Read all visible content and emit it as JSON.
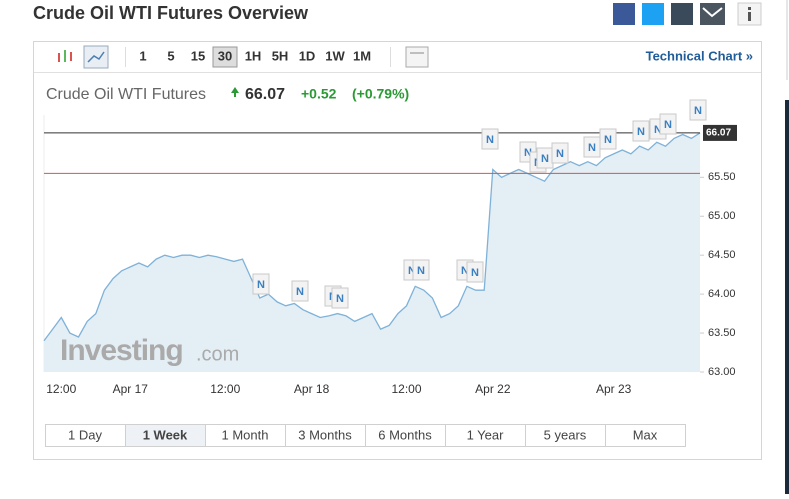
{
  "header": {
    "title": "Crude Oil WTI Futures Overview"
  },
  "toolbar": {
    "intervals": [
      "1",
      "5",
      "15",
      "30",
      "1H",
      "5H",
      "1D",
      "1W",
      "1M"
    ],
    "technical_chart": "Technical Chart »"
  },
  "quote": {
    "name": "Crude Oil WTI Futures",
    "last": 66.07,
    "change": "+0.52",
    "change_pct": "(+0.79%)"
  },
  "watermark": {
    "name": "Investing",
    "suffix": ".com"
  },
  "news_marker": "N",
  "chart_data": {
    "type": "line",
    "categories": [
      null,
      null,
      "12:00",
      null,
      null,
      null,
      null,
      null,
      null,
      null,
      "Apr 17",
      null,
      null,
      null,
      null,
      null,
      null,
      null,
      null,
      null,
      null,
      "12:00",
      null,
      null,
      null,
      null,
      null,
      null,
      null,
      null,
      null,
      "Apr 18",
      null,
      null,
      null,
      null,
      null,
      null,
      null,
      null,
      null,
      null,
      "12:00",
      null,
      null,
      null,
      null,
      null,
      null,
      null,
      null,
      null,
      "Apr 22",
      null,
      null,
      null,
      null,
      null,
      null,
      null,
      null,
      null,
      null,
      null,
      null,
      null,
      "Apr 23",
      null,
      null,
      null,
      null,
      null,
      null,
      null,
      null,
      null,
      null
    ],
    "series": [
      {
        "name": "Crude Oil WTI Futures",
        "color": "#7fb2d8",
        "values": [
          63.4,
          63.55,
          63.7,
          63.5,
          63.45,
          63.65,
          63.75,
          64.05,
          64.2,
          64.3,
          64.35,
          64.4,
          64.35,
          64.45,
          64.5,
          64.47,
          64.5,
          64.5,
          64.47,
          64.5,
          64.48,
          64.45,
          64.42,
          64.45,
          64.2,
          63.95,
          64.0,
          63.9,
          63.85,
          63.88,
          63.8,
          63.75,
          63.7,
          63.72,
          63.75,
          63.72,
          63.65,
          63.7,
          63.75,
          63.55,
          63.6,
          63.75,
          63.85,
          64.1,
          64.05,
          63.95,
          63.7,
          63.75,
          63.85,
          64.1,
          64.05,
          64.05,
          65.6,
          65.5,
          65.55,
          65.6,
          65.55,
          65.5,
          65.45,
          65.6,
          65.65,
          65.7,
          65.65,
          65.7,
          65.65,
          65.75,
          65.8,
          65.85,
          65.8,
          65.9,
          65.85,
          65.95,
          65.9,
          66.0,
          66.05,
          66.0,
          66.07
        ]
      }
    ],
    "last_value": 66.07,
    "last_color": "#333333",
    "prev_close": 65.55,
    "prev_close_color": "#d9534f",
    "area_color": "#e4eef5",
    "ylim": [
      63.0,
      66.3
    ],
    "yticks": [
      {
        "value": 63,
        "label": "63.00"
      },
      {
        "value": 63.5,
        "label": "63.50"
      },
      {
        "value": 64,
        "label": "64.00"
      },
      {
        "value": 64.5,
        "label": "64.50"
      },
      {
        "value": 65,
        "label": "65.00"
      },
      {
        "value": 65.5,
        "label": "65.50"
      }
    ],
    "grid": false
  },
  "ranges": [
    "1 Day",
    "1 Week",
    "1 Month",
    "3 Months",
    "6 Months",
    "1 Year",
    "5 years",
    "Max"
  ]
}
